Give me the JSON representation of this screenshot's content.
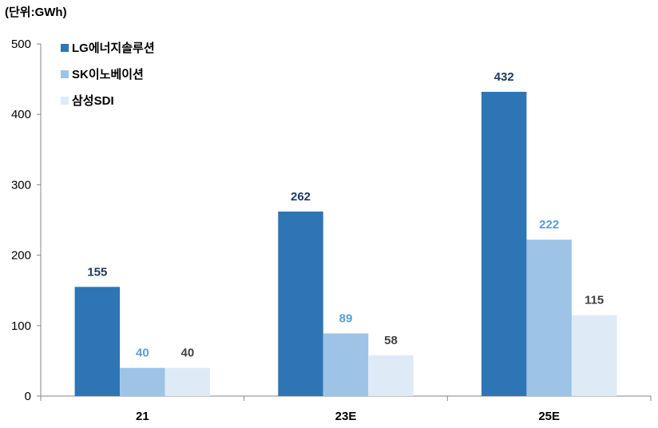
{
  "chart_data": {
    "type": "bar",
    "unit_label": "(단위:GWh)",
    "categories": [
      "21",
      "23E",
      "25E"
    ],
    "series": [
      {
        "name": "LG에너지솔루션",
        "values": [
          155,
          262,
          432
        ],
        "color": "#2E75B6",
        "label_color": "#1F3864"
      },
      {
        "name": "SK이노베이션",
        "values": [
          40,
          89,
          222
        ],
        "color": "#9DC3E6",
        "label_color": "#5B9BD5"
      },
      {
        "name": "삼성SDI",
        "values": [
          40,
          58,
          115
        ],
        "color": "#DEEBF7",
        "label_color": "#404040"
      }
    ],
    "y_ticks": [
      0,
      100,
      200,
      300,
      400,
      500
    ],
    "ylim": [
      0,
      500
    ],
    "grid": false,
    "legend_position": "top-left"
  }
}
